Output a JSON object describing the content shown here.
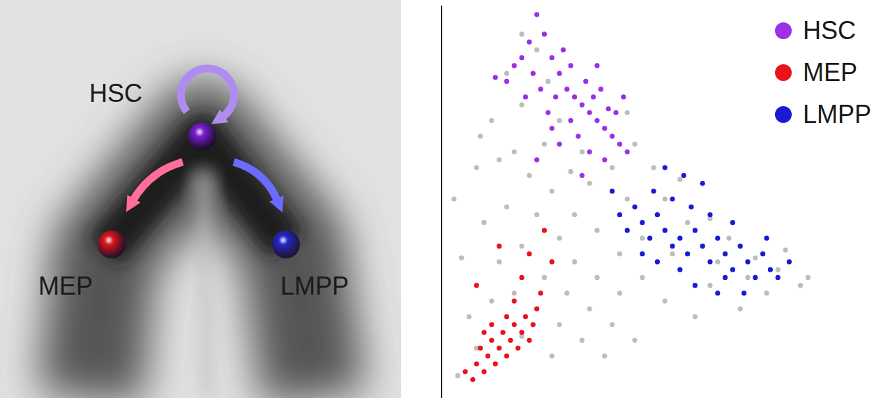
{
  "diagram": {
    "nodes": [
      {
        "label": "HSC",
        "color": "#7b1fd6"
      },
      {
        "label": "MEP",
        "color": "#e0161b"
      },
      {
        "label": "LMPP",
        "color": "#2626d0"
      }
    ]
  },
  "chart_data": {
    "type": "scatter",
    "xlim": [
      0,
      110
    ],
    "ylim": [
      0,
      100
    ],
    "tick_labels": false,
    "legend": "upper right",
    "series": [
      {
        "color": "#bdbdbd",
        "x": [
          3,
          6,
          4,
          2,
          8,
          12,
          16,
          20,
          24,
          27,
          30,
          36,
          42,
          48,
          50,
          55,
          58,
          62,
          70,
          75,
          82,
          88,
          94,
          85,
          78,
          70,
          66,
          58,
          52,
          46,
          40,
          34,
          28,
          22,
          16,
          10,
          14,
          20,
          26,
          32,
          38,
          44,
          50,
          42,
          36,
          30,
          24,
          18,
          12,
          8,
          20,
          28,
          34,
          40,
          46,
          52,
          60,
          64,
          56,
          48,
          38,
          30,
          24,
          18,
          26,
          33,
          44,
          20,
          14,
          9,
          72,
          80,
          90,
          96
        ],
        "values": [
          5,
          20,
          35,
          50,
          58,
          70,
          82,
          92,
          88,
          80,
          70,
          62,
          68,
          72,
          64,
          58,
          50,
          55,
          45,
          40,
          35,
          32,
          28,
          26,
          22,
          28,
          20,
          24,
          30,
          36,
          42,
          46,
          52,
          56,
          48,
          44,
          34,
          38,
          30,
          26,
          22,
          18,
          14,
          10,
          14,
          18,
          22,
          26,
          24,
          12,
          15,
          10,
          34,
          30,
          26,
          40,
          36,
          44,
          46,
          50,
          54,
          40,
          46,
          62,
          64,
          57,
          58,
          74,
          60,
          66,
          34,
          30,
          37,
          30
        ]
      },
      {
        "name": "HSC",
        "color": "#9b30e8",
        "x": [
          13,
          16,
          18,
          20,
          22,
          24,
          26,
          28,
          30,
          32,
          34,
          36,
          38,
          40,
          42,
          44,
          46,
          48,
          31,
          29,
          33,
          37,
          39,
          41,
          43,
          35,
          27,
          25,
          23,
          30,
          38,
          36,
          24,
          42,
          45,
          47,
          33,
          21,
          28,
          40
        ],
        "values": [
          81,
          80,
          84,
          86,
          90,
          97,
          92,
          86,
          82,
          78,
          76,
          74,
          72,
          70,
          68,
          66,
          64,
          62,
          88,
          76,
          70,
          80,
          76,
          78,
          73,
          66,
          72,
          78,
          82,
          64,
          62,
          56,
          60,
          60,
          72,
          76,
          84,
          76,
          68,
          84
        ]
      },
      {
        "name": "MEP",
        "color": "#e8141a",
        "x": [
          5,
          7,
          8,
          9,
          10,
          11,
          12,
          13,
          14,
          15,
          16,
          17,
          18,
          19,
          20,
          21,
          22,
          23,
          24,
          12,
          16,
          10,
          25,
          20,
          14,
          22,
          28,
          8,
          26,
          18
        ],
        "values": [
          6,
          4,
          8,
          12,
          6,
          10,
          14,
          8,
          12,
          16,
          10,
          14,
          18,
          12,
          16,
          20,
          14,
          18,
          22,
          18,
          20,
          16,
          26,
          30,
          38,
          36,
          34,
          28,
          42,
          24
        ]
      },
      {
        "name": "LMPP",
        "color": "#1a1ad6",
        "x": [
          44,
          46,
          48,
          50,
          52,
          54,
          56,
          58,
          60,
          62,
          64,
          66,
          68,
          70,
          72,
          74,
          76,
          78,
          80,
          82,
          84,
          86,
          88,
          91,
          55,
          60,
          65,
          70,
          63,
          58,
          68,
          74,
          66,
          62,
          56,
          52,
          79,
          72,
          85,
          76
        ],
        "values": [
          52,
          46,
          42,
          48,
          44,
          40,
          46,
          42,
          38,
          40,
          36,
          42,
          38,
          34,
          40,
          36,
          32,
          38,
          34,
          30,
          36,
          32,
          30,
          34,
          52,
          50,
          48,
          46,
          56,
          58,
          54,
          30,
          28,
          32,
          34,
          36,
          26,
          26,
          40,
          44
        ]
      }
    ]
  }
}
